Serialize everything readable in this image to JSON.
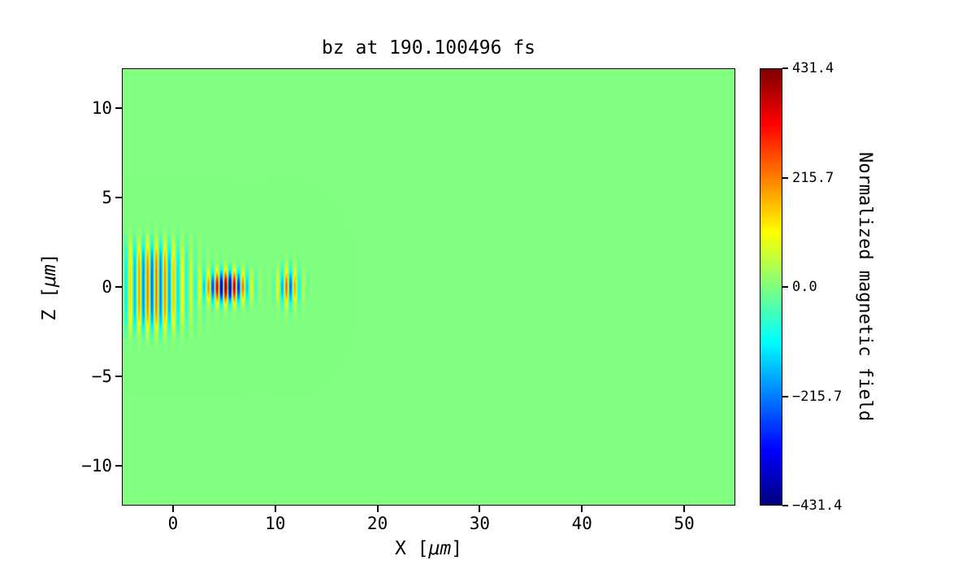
{
  "chart_data": {
    "type": "heatmap",
    "title": "bz at 190.100496 fs",
    "xlabel": "X [μm]",
    "ylabel": "Z [μm]",
    "xlim": [
      -5,
      55
    ],
    "ylim": [
      -12.2,
      12.2
    ],
    "xticks": {
      "values": [
        0,
        10,
        20,
        30,
        40,
        50
      ],
      "labels": [
        "0",
        "10",
        "20",
        "30",
        "40",
        "50"
      ]
    },
    "yticks": {
      "values": [
        -10,
        -5,
        0,
        5,
        10
      ],
      "labels": [
        "−10",
        "−5",
        "0",
        "5",
        "10"
      ]
    },
    "colormap": "jet",
    "grid": false,
    "colorbar": {
      "label": "Normalized magnetic field",
      "vmin": -431.4,
      "vmax": 431.4,
      "tick_values": [
        431.4,
        215.7,
        0.0,
        -215.7,
        -431.4
      ],
      "tick_labels": [
        "431.4",
        "215.7",
        "0.0",
        "−215.7",
        "−431.4"
      ],
      "position": "right"
    },
    "field": {
      "description": "Laser wave packet: vertical red/blue fringes oscillating along x, centered on z=0, spanning x≈−5 to ≈13 μm; strongest saturated core near x≈3–8, weaker broad tail at x≈−5–1 extending to z≈±3.5, small trailing packet at x≈10–13; value 0 (green) elsewhere",
      "wavelength_um": 0.85,
      "amplitude": 431.4,
      "components": [
        {
          "x_center": -2.0,
          "x_sigma": 3.2,
          "z_center": 0,
          "z_sigma": 2.5,
          "z_power": 4,
          "rel_amp": 0.55
        },
        {
          "x_center": 5.2,
          "x_sigma": 2.0,
          "z_center": 0,
          "z_sigma": 0.85,
          "z_power": 2,
          "rel_amp": 1.05
        },
        {
          "x_center": 11.3,
          "x_sigma": 1.1,
          "z_center": 0,
          "z_sigma": 1.0,
          "z_power": 2,
          "rel_amp": 0.6
        }
      ]
    }
  },
  "axes": {
    "xlabel_prefix": "X [",
    "xlabel_math": "μm",
    "xlabel_suffix": "]",
    "ylabel_prefix": "Z [",
    "ylabel_math": "μm",
    "ylabel_suffix": "]"
  }
}
